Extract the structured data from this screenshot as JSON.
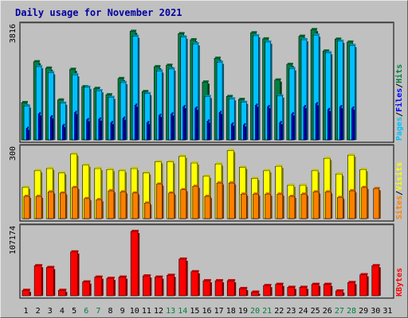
{
  "chart_data": {
    "title": "Daily usage for November 2021",
    "type": "bar",
    "categories": [
      "1",
      "2",
      "3",
      "4",
      "5",
      "6",
      "7",
      "8",
      "9",
      "10",
      "11",
      "12",
      "13",
      "14",
      "15",
      "16",
      "17",
      "18",
      "19",
      "20",
      "21",
      "22",
      "23",
      "24",
      "25",
      "26",
      "27",
      "28",
      "29",
      "30",
      "31"
    ],
    "weekend_days": [
      6,
      7,
      13,
      14,
      20,
      21,
      27,
      28
    ],
    "colors": {
      "hits": "#008040",
      "files": "#00c0ff",
      "pages": "#0000ff",
      "visits": "#ffff00",
      "sites": "#ff8000",
      "kbytes": "#ff0000",
      "weekday_label": "#000000",
      "weekend_label": "#008040"
    },
    "panels": [
      {
        "name": "hits-files-pages",
        "y_max_label": "3816",
        "ylim": [
          0,
          3816
        ],
        "legend": [
          "Pages",
          "/",
          "Files",
          "/",
          "Hits"
        ],
        "series": [
          {
            "name": "Hits",
            "values": [
              1290,
              2700,
              2480,
              1380,
              2440,
              1840,
              1780,
              1560,
              2120,
              3750,
              1670,
              2530,
              2580,
              3670,
              3460,
              2000,
              2820,
              1500,
              1400,
              3700,
              3490,
              2070,
              2610,
              3580,
              3810,
              3070,
              3480,
              3380,
              null,
              null,
              null
            ]
          },
          {
            "name": "Files",
            "values": [
              1170,
              2530,
              2320,
              1270,
              2250,
              1820,
              1700,
              1470,
              1980,
              3580,
              1600,
              2380,
              2450,
              3550,
              3320,
              1500,
              2680,
              1420,
              1300,
              3600,
              3380,
              1520,
              2460,
              3460,
              3620,
              3010,
              3410,
              3260,
              null,
              null,
              null
            ]
          },
          {
            "name": "Pages",
            "values": [
              400,
              900,
              800,
              500,
              950,
              700,
              720,
              600,
              750,
              1200,
              600,
              850,
              900,
              1150,
              1100,
              650,
              950,
              550,
              520,
              1200,
              1150,
              600,
              900,
              1150,
              1250,
              1050,
              1150,
              1100,
              null,
              null,
              null
            ]
          }
        ]
      },
      {
        "name": "visits-sites",
        "y_max_label": "300",
        "ylim": [
          0,
          300
        ],
        "legend": [
          "Sites",
          "/",
          "Visits"
        ],
        "series": [
          {
            "name": "Visits",
            "values": [
              140,
              215,
              225,
              205,
              290,
              240,
              225,
              220,
              215,
              225,
              205,
              255,
              255,
              280,
              250,
              190,
              245,
              305,
              230,
              180,
              215,
              235,
              150,
              150,
              215,
              270,
              200,
              285,
              220,
              null,
              null
            ]
          },
          {
            "name": "Sites",
            "values": [
              100,
              100,
              120,
              115,
              140,
              90,
              85,
              125,
              120,
              115,
              70,
              155,
              115,
              130,
              145,
              100,
              160,
              160,
              110,
              110,
              110,
              110,
              100,
              110,
              120,
              120,
              95,
              125,
              140,
              135,
              null
            ]
          }
        ]
      },
      {
        "name": "kbytes",
        "y_max_label": "107174",
        "ylim": [
          0,
          107174
        ],
        "legend": [
          "KBytes"
        ],
        "series": [
          {
            "name": "KBytes",
            "values": [
              9000,
              50000,
              47000,
              9000,
              73000,
              23000,
              31000,
              29000,
              31000,
              107000,
              33000,
              31000,
              34000,
              61000,
              40000,
              25000,
              25000,
              25000,
              12000,
              6000,
              17000,
              19000,
              14000,
              14000,
              19000,
              19000,
              8000,
              22000,
              35000,
              50000,
              null
            ]
          }
        ]
      }
    ]
  }
}
